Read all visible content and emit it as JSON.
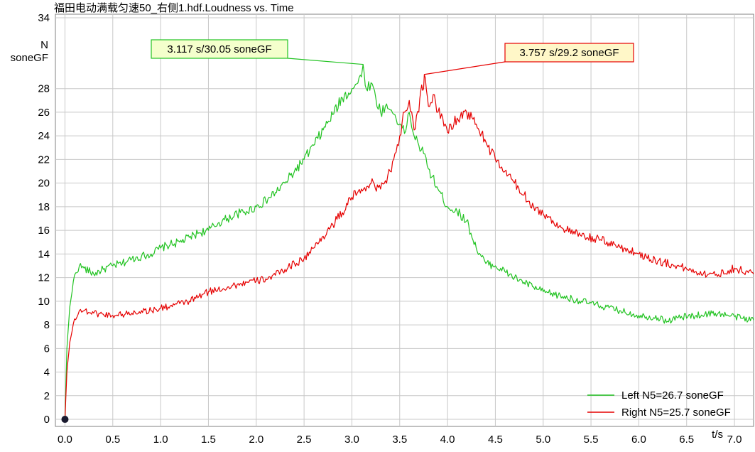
{
  "chart_data": {
    "type": "line",
    "title": "福田电动满载匀速50_右侧1.hdf.Loudness vs. Time",
    "ylabel": "N",
    "ylabel_unit": "soneGF",
    "xlabel": "t/s",
    "xlim": [
      -0.1,
      7.2
    ],
    "ylim": [
      -0.6,
      34.3
    ],
    "x_ticks": [
      0.0,
      0.5,
      1.0,
      1.5,
      2.0,
      2.5,
      3.0,
      3.5,
      4.0,
      4.5,
      5.0,
      5.5,
      6.0,
      6.5,
      7.0
    ],
    "x_tick_labels": [
      "0.0",
      "0.5",
      "1.0",
      "1.5",
      "2.0",
      "2.5",
      "3.0",
      "3.5",
      "4.0",
      "4.5",
      "5.0",
      "5.5",
      "6.0",
      "6.5",
      "7.0"
    ],
    "y_ticks": [
      0,
      2,
      4,
      6,
      8,
      10,
      12,
      14,
      16,
      18,
      20,
      22,
      24,
      26,
      28,
      34
    ],
    "y_tick_labels": [
      "0",
      "2",
      "4",
      "6",
      "8",
      "10",
      "12",
      "14",
      "16",
      "18",
      "20",
      "22",
      "24",
      "26",
      "28",
      "34"
    ],
    "grid": true,
    "legend_position": "bottom-right",
    "series": [
      {
        "name": "Left N5=26.7 soneGF",
        "color": "#22c322",
        "x": [
          0.0,
          0.02,
          0.05,
          0.1,
          0.15,
          0.2,
          0.3,
          0.4,
          0.5,
          0.6,
          0.7,
          0.8,
          0.9,
          1.0,
          1.1,
          1.2,
          1.3,
          1.4,
          1.5,
          1.6,
          1.7,
          1.8,
          1.9,
          2.0,
          2.1,
          2.2,
          2.3,
          2.4,
          2.5,
          2.6,
          2.7,
          2.8,
          2.9,
          3.0,
          3.05,
          3.1,
          3.117,
          3.15,
          3.2,
          3.25,
          3.3,
          3.35,
          3.4,
          3.45,
          3.5,
          3.55,
          3.6,
          3.65,
          3.7,
          3.75,
          3.8,
          3.9,
          4.0,
          4.1,
          4.2,
          4.3,
          4.4,
          4.5,
          4.6,
          4.7,
          4.8,
          4.9,
          5.0,
          5.2,
          5.4,
          5.6,
          5.8,
          6.0,
          6.2,
          6.3,
          6.4,
          6.6,
          6.8,
          7.0,
          7.2
        ],
        "y": [
          0,
          6,
          9.5,
          12.2,
          13.0,
          12.8,
          12.3,
          12.7,
          13.0,
          13.2,
          13.6,
          13.8,
          14.0,
          14.5,
          14.8,
          15.0,
          15.4,
          15.8,
          16.0,
          16.6,
          17.0,
          17.4,
          17.6,
          18.0,
          18.5,
          19.2,
          20.0,
          21.0,
          22.0,
          23.2,
          24.5,
          25.8,
          27.2,
          28.0,
          28.4,
          29.0,
          30.05,
          28.0,
          28.5,
          27.2,
          26.0,
          26.5,
          26.2,
          25.8,
          25.0,
          24.2,
          26.0,
          24.0,
          23.2,
          22.5,
          21.2,
          19.5,
          18.0,
          17.6,
          16.8,
          14.5,
          13.2,
          13.0,
          12.5,
          12.0,
          11.6,
          11.2,
          10.8,
          10.4,
          10.0,
          9.6,
          9.2,
          8.8,
          8.6,
          8.3,
          8.6,
          8.8,
          9.0,
          8.7,
          8.4
        ]
      },
      {
        "name": "Right N5=25.7 soneGF",
        "color": "#e60000",
        "x": [
          0.0,
          0.02,
          0.05,
          0.1,
          0.15,
          0.2,
          0.3,
          0.4,
          0.5,
          0.6,
          0.7,
          0.8,
          0.9,
          1.0,
          1.1,
          1.2,
          1.3,
          1.4,
          1.5,
          1.6,
          1.7,
          1.8,
          1.9,
          2.0,
          2.1,
          2.2,
          2.3,
          2.4,
          2.5,
          2.6,
          2.7,
          2.8,
          2.9,
          3.0,
          3.1,
          3.2,
          3.3,
          3.35,
          3.4,
          3.45,
          3.5,
          3.55,
          3.6,
          3.65,
          3.7,
          3.72,
          3.75,
          3.757,
          3.8,
          3.85,
          3.9,
          3.95,
          4.0,
          4.1,
          4.2,
          4.3,
          4.4,
          4.5,
          4.6,
          4.7,
          4.8,
          4.9,
          5.0,
          5.2,
          5.4,
          5.6,
          5.8,
          6.0,
          6.2,
          6.4,
          6.6,
          6.8,
          7.0,
          7.2
        ],
        "y": [
          0,
          4,
          6.5,
          8.5,
          9.2,
          9.2,
          9.0,
          8.9,
          8.8,
          8.9,
          9.0,
          9.2,
          9.2,
          9.4,
          9.6,
          9.8,
          10.0,
          10.4,
          10.8,
          11.0,
          11.2,
          11.4,
          11.6,
          11.7,
          11.9,
          12.2,
          12.7,
          13.2,
          13.6,
          14.5,
          15.5,
          16.5,
          17.5,
          18.8,
          19.5,
          20.0,
          19.5,
          20.2,
          21.0,
          22.5,
          24.0,
          26.0,
          27.0,
          24.5,
          26.0,
          27.8,
          28.0,
          29.2,
          26.5,
          27.5,
          26.0,
          25.5,
          24.3,
          25.5,
          26.0,
          25.0,
          23.5,
          22.0,
          21.0,
          20.0,
          19.0,
          18.0,
          17.4,
          16.2,
          15.5,
          15.2,
          14.6,
          14.0,
          13.4,
          13.0,
          12.5,
          12.2,
          12.8,
          12.3
        ]
      }
    ],
    "annotations": [
      {
        "text": "3.117 s/30.05 soneGF",
        "x": 3.117,
        "y": 30.05,
        "color": "#22c322",
        "fill": "#f4ffcc"
      },
      {
        "text": "3.757 s/29.2 soneGF",
        "x": 3.757,
        "y": 29.2,
        "color": "#e60000",
        "fill": "#fff7c8"
      }
    ]
  }
}
